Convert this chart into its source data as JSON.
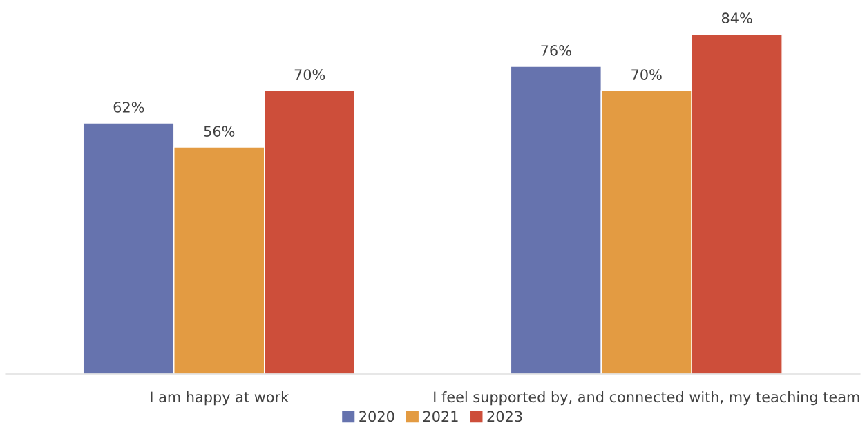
{
  "chart_data": {
    "type": "bar",
    "categories": [
      "I am happy at work",
      "I feel supported by, and connected with, my teaching team"
    ],
    "series": [
      {
        "name": "2020",
        "color": "#6673ae",
        "values": [
          62,
          76
        ],
        "value_labels": [
          "62%",
          "76%"
        ]
      },
      {
        "name": "2021",
        "color": "#e39b42",
        "values": [
          56,
          70
        ],
        "value_labels": [
          "56%",
          "70%"
        ]
      },
      {
        "name": "2023",
        "color": "#cd4e3a",
        "values": [
          70,
          84
        ],
        "value_labels": [
          "70%",
          "84%"
        ]
      }
    ],
    "grid": false,
    "legend": "bottom"
  }
}
